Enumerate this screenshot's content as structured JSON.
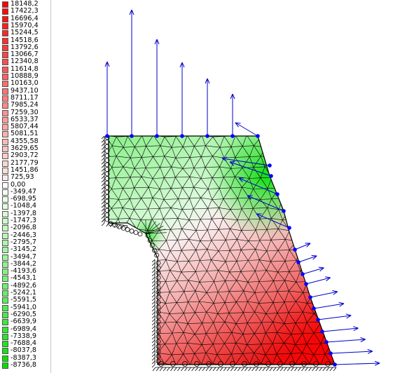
{
  "legend": {
    "labels": [
      "18148,2",
      "17422,3",
      "16696,4",
      "15970,4",
      "15244,5",
      "14518,6",
      "13792,6",
      "13066,7",
      "12340,8",
      "11614,8",
      "10888,9",
      "10163,0",
      "9437,10",
      "8711,17",
      "7985,24",
      "7259,30",
      "6533,37",
      "5807,44",
      "5081,51",
      "4355,58",
      "3629,65",
      "2903,72",
      "2177,79",
      "1451,86",
      "725,93",
      "0,00",
      "-349,47",
      "-698,95",
      "-1048,4",
      "-1397,8",
      "-1747,3",
      "-2096,8",
      "-2446,3",
      "-2795,7",
      "-3145,2",
      "-3494,7",
      "-3844,2",
      "-4193,6",
      "-4543,1",
      "-4892,6",
      "-5242,1",
      "-5591,5",
      "-5941,0",
      "-6290,5",
      "-6639,9",
      "-6989,4",
      "-7338,9",
      "-7688,4",
      "-8037,8",
      "-8387,3",
      "-8736,8"
    ],
    "positive_color": "#ff0000",
    "zero_color": "#ffffff",
    "negative_color": "#00e000"
  },
  "model": {
    "mesh_color": "#000000",
    "load_arrow_color": "#0000cc",
    "node_color": "#0000ff"
  }
}
